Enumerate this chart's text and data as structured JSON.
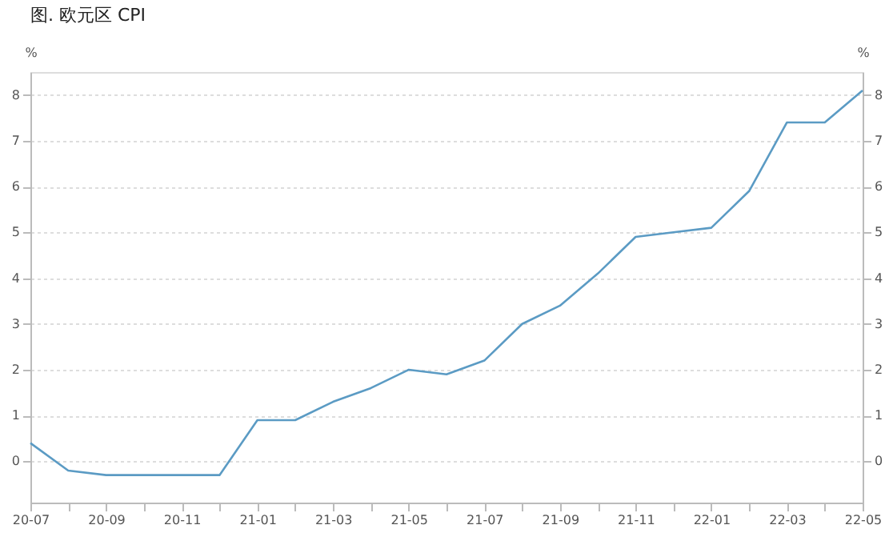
{
  "chart_data": {
    "type": "line",
    "title": "图. 欧元区 CPI",
    "categories": [
      "20-07",
      null,
      "20-09",
      null,
      "20-11",
      null,
      "21-01",
      null,
      "21-03",
      null,
      "21-05",
      null,
      "21-07",
      null,
      "21-09",
      null,
      "21-11",
      null,
      "22-01",
      null,
      "22-03",
      null,
      "22-05"
    ],
    "series": [
      {
        "color": "#5b9bc4",
        "values": [
          0.4,
          -0.2,
          -0.3,
          -0.3,
          -0.3,
          -0.3,
          0.9,
          0.9,
          1.3,
          1.6,
          2.0,
          1.9,
          2.2,
          3.0,
          3.4,
          4.1,
          4.9,
          5.0,
          5.1,
          5.9,
          7.4,
          7.4,
          8.1
        ]
      }
    ],
    "ylabel": "%",
    "y2label": "%",
    "ylim": [
      -0.9,
      8.5
    ],
    "yticks": [
      0,
      1,
      2,
      3,
      4,
      5,
      6,
      7,
      8
    ],
    "y2lim": [
      -0.9,
      8.5
    ],
    "y2ticks": [
      0,
      1,
      2,
      3,
      4,
      5,
      6,
      7,
      8
    ],
    "grid": "y",
    "legend": false,
    "line_style": "solid",
    "marker": "none"
  }
}
